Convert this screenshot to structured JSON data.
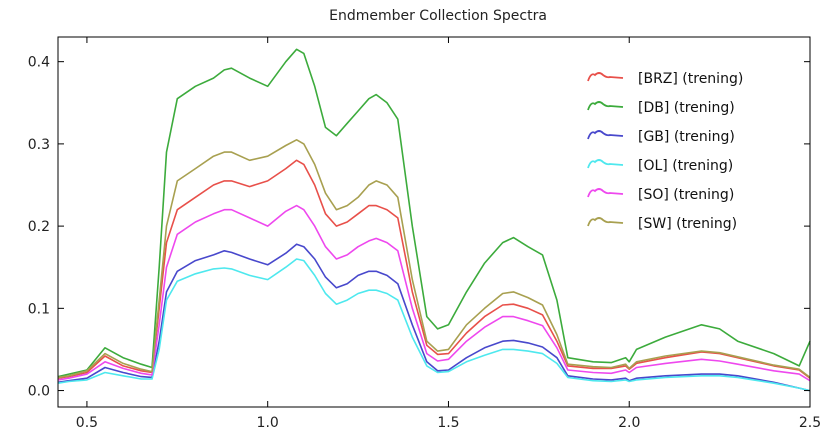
{
  "chart_data": {
    "type": "line",
    "title": "Endmember Collection Spectra",
    "xlabel": "",
    "ylabel": "",
    "xlim": [
      0.42,
      2.5
    ],
    "ylim": [
      -0.02,
      0.43
    ],
    "xticks": [
      0.5,
      1.0,
      1.5,
      2.0,
      2.5
    ],
    "xtick_labels": [
      "0.5",
      "1.0",
      "1.5",
      "2.0",
      "2.5"
    ],
    "yticks": [
      0.0,
      0.1,
      0.2,
      0.3,
      0.4
    ],
    "ytick_labels": [
      "0.0",
      "0.1",
      "0.2",
      "0.3",
      "0.4"
    ],
    "grid": false,
    "legend_position": "top-right",
    "x": [
      0.42,
      0.45,
      0.5,
      0.55,
      0.6,
      0.65,
      0.68,
      0.7,
      0.72,
      0.75,
      0.8,
      0.85,
      0.88,
      0.9,
      0.95,
      1.0,
      1.05,
      1.08,
      1.1,
      1.13,
      1.16,
      1.19,
      1.22,
      1.25,
      1.28,
      1.3,
      1.33,
      1.36,
      1.4,
      1.44,
      1.47,
      1.5,
      1.55,
      1.6,
      1.65,
      1.68,
      1.72,
      1.76,
      1.8,
      1.83,
      1.9,
      1.95,
      1.99,
      2.0,
      2.02,
      2.1,
      2.2,
      2.25,
      2.3,
      2.4,
      2.47,
      2.5
    ],
    "series": [
      {
        "name": "[BRZ] (trening)",
        "color": "#e8504a",
        "values": [
          0.015,
          0.017,
          0.022,
          0.042,
          0.03,
          0.024,
          0.022,
          0.1,
          0.18,
          0.22,
          0.235,
          0.25,
          0.255,
          0.255,
          0.248,
          0.255,
          0.27,
          0.28,
          0.275,
          0.25,
          0.215,
          0.2,
          0.205,
          0.215,
          0.225,
          0.225,
          0.22,
          0.21,
          0.12,
          0.055,
          0.044,
          0.045,
          0.07,
          0.09,
          0.104,
          0.105,
          0.1,
          0.092,
          0.06,
          0.03,
          0.027,
          0.027,
          0.03,
          0.026,
          0.033,
          0.04,
          0.047,
          0.045,
          0.04,
          0.03,
          0.025,
          0.015
        ]
      },
      {
        "name": "[DB] (trening)",
        "color": "#3cab3c",
        "values": [
          0.017,
          0.02,
          0.025,
          0.052,
          0.04,
          0.032,
          0.028,
          0.15,
          0.29,
          0.355,
          0.37,
          0.38,
          0.39,
          0.392,
          0.38,
          0.37,
          0.4,
          0.415,
          0.41,
          0.37,
          0.32,
          0.31,
          0.325,
          0.34,
          0.355,
          0.36,
          0.35,
          0.33,
          0.2,
          0.09,
          0.075,
          0.08,
          0.12,
          0.155,
          0.18,
          0.186,
          0.175,
          0.165,
          0.11,
          0.04,
          0.035,
          0.034,
          0.04,
          0.035,
          0.05,
          0.065,
          0.08,
          0.075,
          0.06,
          0.045,
          0.03,
          0.06
        ]
      },
      {
        "name": "[GB] (trening)",
        "color": "#4848cc",
        "values": [
          0.01,
          0.012,
          0.015,
          0.028,
          0.022,
          0.017,
          0.016,
          0.06,
          0.12,
          0.145,
          0.158,
          0.165,
          0.17,
          0.168,
          0.16,
          0.153,
          0.167,
          0.178,
          0.175,
          0.16,
          0.138,
          0.125,
          0.13,
          0.14,
          0.145,
          0.145,
          0.14,
          0.13,
          0.08,
          0.035,
          0.024,
          0.025,
          0.04,
          0.052,
          0.06,
          0.061,
          0.058,
          0.053,
          0.04,
          0.018,
          0.014,
          0.013,
          0.015,
          0.012,
          0.015,
          0.018,
          0.02,
          0.02,
          0.018,
          0.01,
          0.003,
          0.0
        ]
      },
      {
        "name": "[OL] (trening)",
        "color": "#4ee8ee",
        "values": [
          0.009,
          0.011,
          0.013,
          0.022,
          0.018,
          0.014,
          0.014,
          0.05,
          0.11,
          0.133,
          0.142,
          0.148,
          0.149,
          0.148,
          0.14,
          0.135,
          0.15,
          0.16,
          0.158,
          0.14,
          0.118,
          0.105,
          0.11,
          0.118,
          0.122,
          0.122,
          0.118,
          0.11,
          0.065,
          0.03,
          0.022,
          0.023,
          0.035,
          0.043,
          0.05,
          0.05,
          0.048,
          0.045,
          0.033,
          0.016,
          0.012,
          0.011,
          0.013,
          0.011,
          0.013,
          0.016,
          0.018,
          0.018,
          0.016,
          0.009,
          0.003,
          0.0
        ]
      },
      {
        "name": "[SO] (trening)",
        "color": "#ee48ee",
        "values": [
          0.013,
          0.015,
          0.02,
          0.035,
          0.027,
          0.021,
          0.019,
          0.08,
          0.15,
          0.19,
          0.205,
          0.215,
          0.22,
          0.22,
          0.21,
          0.2,
          0.218,
          0.225,
          0.22,
          0.2,
          0.175,
          0.16,
          0.165,
          0.175,
          0.182,
          0.185,
          0.18,
          0.17,
          0.1,
          0.045,
          0.036,
          0.038,
          0.06,
          0.077,
          0.09,
          0.09,
          0.085,
          0.079,
          0.052,
          0.025,
          0.022,
          0.021,
          0.025,
          0.022,
          0.028,
          0.033,
          0.038,
          0.036,
          0.032,
          0.024,
          0.02,
          0.012
        ]
      },
      {
        "name": "[SW] (trening)",
        "color": "#a8a050",
        "values": [
          0.016,
          0.018,
          0.024,
          0.045,
          0.033,
          0.026,
          0.023,
          0.11,
          0.2,
          0.255,
          0.27,
          0.285,
          0.29,
          0.29,
          0.28,
          0.285,
          0.298,
          0.305,
          0.3,
          0.275,
          0.24,
          0.22,
          0.225,
          0.235,
          0.25,
          0.255,
          0.25,
          0.235,
          0.135,
          0.06,
          0.048,
          0.05,
          0.08,
          0.1,
          0.118,
          0.12,
          0.113,
          0.104,
          0.068,
          0.032,
          0.029,
          0.028,
          0.032,
          0.027,
          0.035,
          0.042,
          0.048,
          0.046,
          0.041,
          0.031,
          0.026,
          0.016
        ]
      }
    ]
  }
}
